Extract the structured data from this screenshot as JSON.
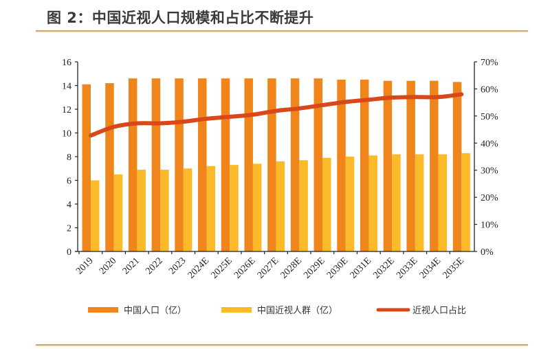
{
  "title": "图 2：中国近视人口规模和占比不断提升",
  "chart_data": {
    "type": "bar",
    "title": "图 2：中国近视人口规模和占比不断提升",
    "categories": [
      "2019",
      "2020",
      "2021",
      "2022",
      "2023",
      "2024E",
      "2025E",
      "2026E",
      "2027E",
      "2028E",
      "2029E",
      "2030E",
      "2031E",
      "2032E",
      "2033E",
      "2034E",
      "2035E"
    ],
    "series": [
      {
        "name": "中国人口（亿）",
        "type": "bar",
        "axis": "left",
        "color": "#F0851C",
        "values": [
          14.1,
          14.2,
          14.6,
          14.6,
          14.6,
          14.6,
          14.6,
          14.6,
          14.6,
          14.6,
          14.6,
          14.5,
          14.5,
          14.4,
          14.4,
          14.4,
          14.3
        ]
      },
      {
        "name": "中国近视人群（亿）",
        "type": "bar",
        "axis": "left",
        "color": "#FBBA2A",
        "values": [
          6.0,
          6.5,
          6.9,
          6.9,
          7.0,
          7.2,
          7.3,
          7.4,
          7.6,
          7.7,
          7.9,
          8.0,
          8.1,
          8.2,
          8.2,
          8.2,
          8.3
        ]
      },
      {
        "name": "近视人口占比",
        "type": "line",
        "axis": "right",
        "color": "#D9481A",
        "values": [
          42.8,
          46.0,
          47.3,
          47.3,
          47.9,
          49.0,
          49.7,
          50.5,
          51.9,
          52.8,
          54.0,
          55.2,
          56.0,
          56.8,
          57.0,
          57.0,
          58.0
        ]
      }
    ],
    "y_left": {
      "ylim": [
        0,
        16
      ],
      "ticks": [
        0,
        2,
        4,
        6,
        8,
        10,
        12,
        14,
        16
      ],
      "tick_labels": [
        "0",
        "2",
        "4",
        "6",
        "8",
        "10",
        "12",
        "14",
        "16"
      ]
    },
    "y_right": {
      "ylim": [
        0,
        70
      ],
      "ticks": [
        0,
        10,
        20,
        30,
        40,
        50,
        60,
        70
      ],
      "tick_labels": [
        "0%",
        "10%",
        "20%",
        "30%",
        "40%",
        "50%",
        "60%",
        "70%"
      ]
    },
    "xlabel": "",
    "ylabel": "",
    "grid": false,
    "legend": {
      "position": "bottom",
      "entries": [
        "中国人口（亿）",
        "中国近视人群（亿）",
        "近视人口占比"
      ]
    }
  }
}
